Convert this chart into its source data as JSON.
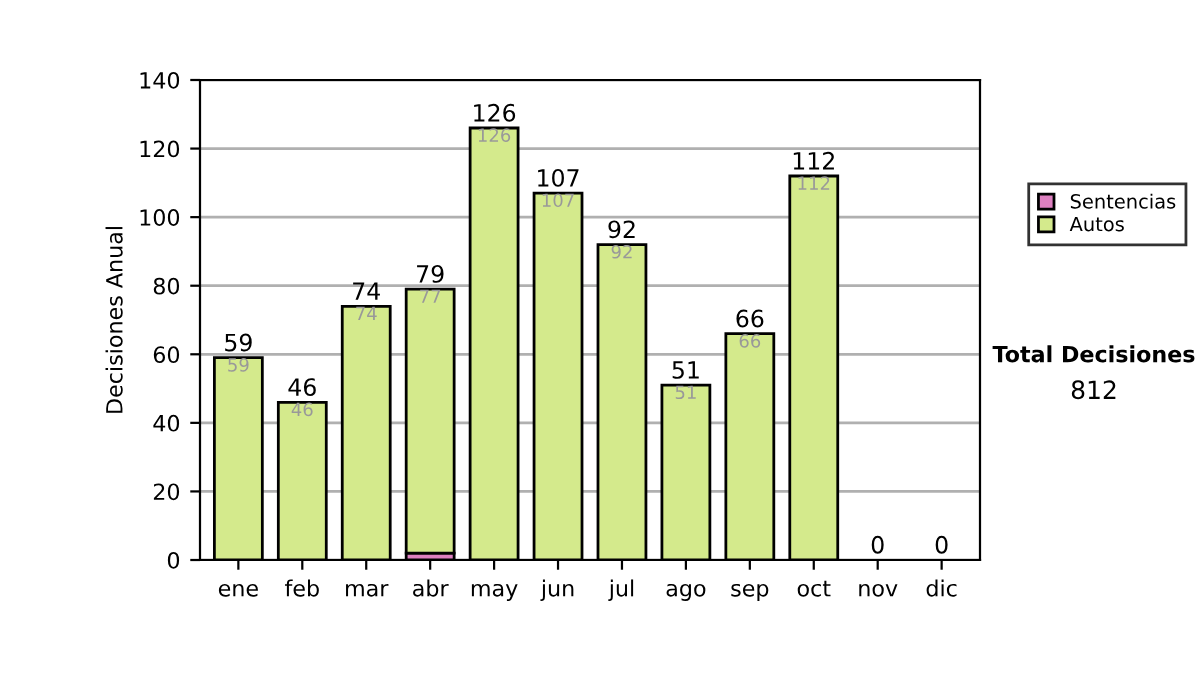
{
  "chart_data": {
    "type": "bar",
    "stacked": true,
    "ylabel": "Decisiones Anual",
    "categories": [
      "ene",
      "feb",
      "mar",
      "abr",
      "may",
      "jun",
      "jul",
      "ago",
      "sep",
      "oct",
      "nov",
      "dic"
    ],
    "series": [
      {
        "name": "Sentencias",
        "color": "#dd80c0",
        "values": [
          0,
          0,
          0,
          2,
          0,
          0,
          0,
          0,
          0,
          0,
          0,
          0
        ]
      },
      {
        "name": "Autos",
        "color": "#d4ea8c",
        "values": [
          59,
          46,
          74,
          77,
          126,
          107,
          92,
          51,
          66,
          112,
          0,
          0
        ],
        "value_labels": [
          "59",
          "46",
          "74",
          "77",
          "126",
          "107",
          "92",
          "51",
          "66",
          "112",
          null,
          null
        ]
      }
    ],
    "totals": [
      "59",
      "46",
      "74",
      "79",
      "126",
      "107",
      "92",
      "51",
      "66",
      "112",
      "0",
      "0"
    ],
    "ylim": [
      0,
      140
    ],
    "yticks": [
      0,
      20,
      40,
      60,
      80,
      100,
      120,
      140
    ],
    "grid": "y",
    "legend": "right",
    "annotations": [
      "Total Decisiones",
      "812"
    ]
  }
}
